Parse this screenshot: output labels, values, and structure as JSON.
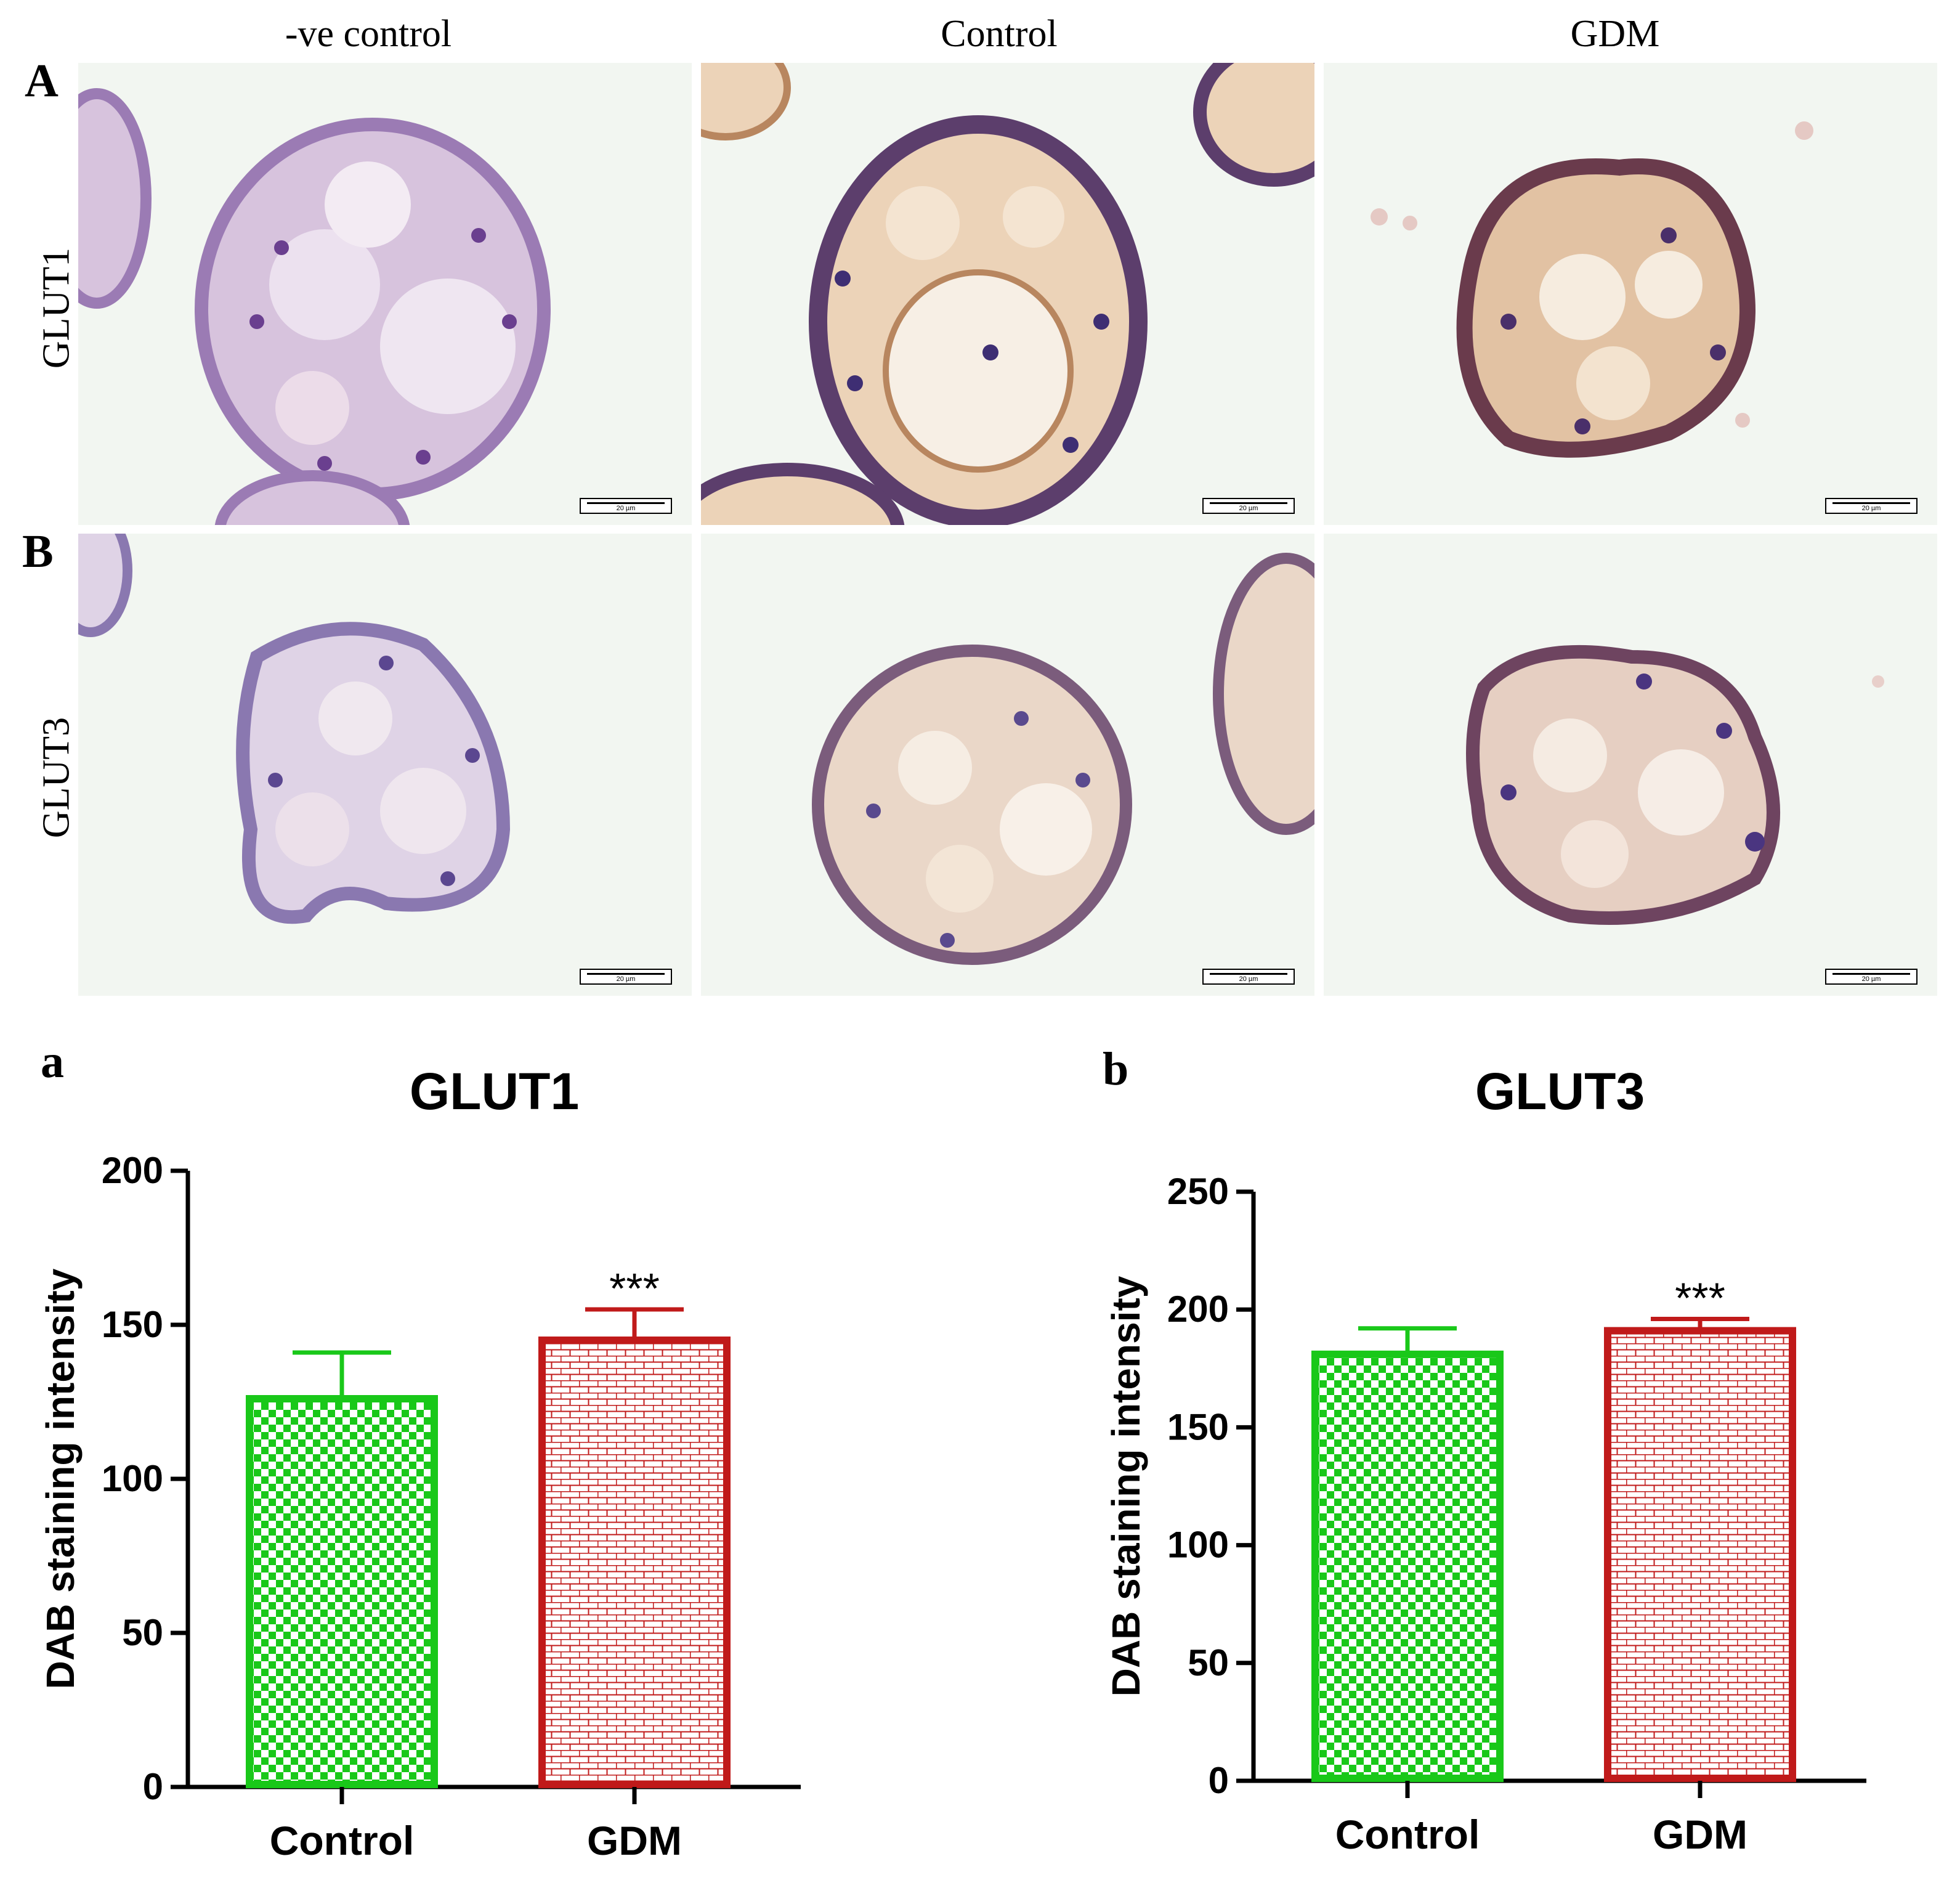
{
  "figure": {
    "micrographs": {
      "columns": [
        "-ve control",
        "Control",
        "GDM"
      ],
      "rows": [
        "GLUT1",
        "GLUT3"
      ],
      "panel_labels": [
        "A",
        "B"
      ],
      "scale_bar": "20 µm"
    },
    "chart_panel_labels": [
      "a",
      "b"
    ]
  },
  "chart_data": [
    {
      "type": "bar",
      "title": "GLUT1",
      "ylabel": "DAB staining intensity",
      "xlabel": "",
      "categories": [
        "Control",
        "GDM"
      ],
      "values": [
        126,
        145
      ],
      "error": [
        15,
        10
      ],
      "significance": [
        "",
        "***"
      ],
      "ylim": [
        0,
        200
      ],
      "yticks": [
        0,
        50,
        100,
        150,
        200
      ],
      "colors": [
        "#19c819",
        "#c01a1a"
      ],
      "patterns": [
        "checkerboard",
        "brick"
      ],
      "grid": false
    },
    {
      "type": "bar",
      "title": "GLUT3",
      "ylabel": "DAB staining intensity",
      "xlabel": "",
      "categories": [
        "Control",
        "GDM"
      ],
      "values": [
        181,
        191
      ],
      "error": [
        11,
        5
      ],
      "significance": [
        "",
        "***"
      ],
      "ylim": [
        0,
        250
      ],
      "yticks": [
        0,
        50,
        100,
        150,
        200,
        250
      ],
      "colors": [
        "#19c819",
        "#c01a1a"
      ],
      "patterns": [
        "checkerboard",
        "brick"
      ],
      "grid": false
    }
  ]
}
